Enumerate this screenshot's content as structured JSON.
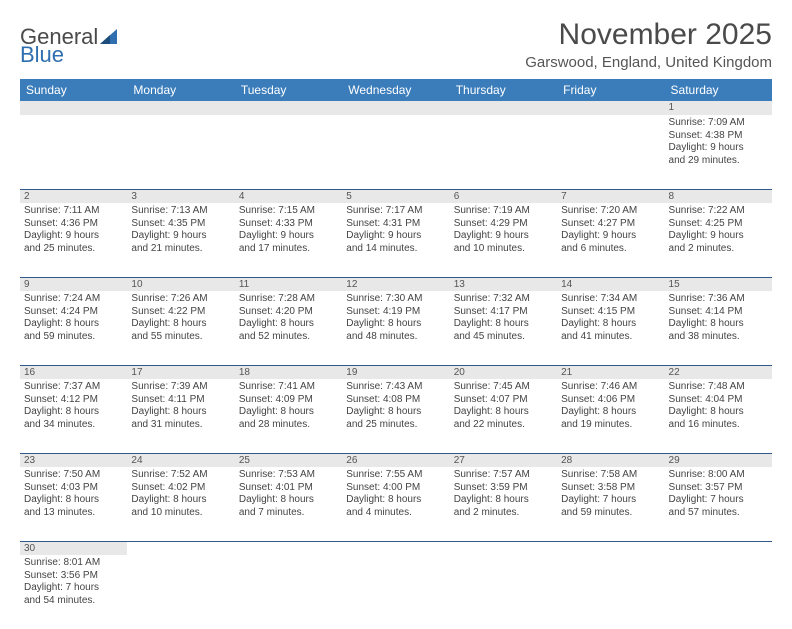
{
  "logo": {
    "text1": "General",
    "text2": "Blue"
  },
  "title": "November 2025",
  "subtitle": "Garswood, England, United Kingdom",
  "dayHeaders": [
    "Sunday",
    "Monday",
    "Tuesday",
    "Wednesday",
    "Thursday",
    "Friday",
    "Saturday"
  ],
  "colors": {
    "header_bg": "#3b7dbb",
    "header_text": "#ffffff",
    "daynum_bg": "#e8e8e8",
    "row_border": "#2f5b8a",
    "text": "#444444",
    "title": "#4a4a4a"
  },
  "weeks": [
    [
      null,
      null,
      null,
      null,
      null,
      null,
      {
        "n": "1",
        "sr": "Sunrise: 7:09 AM",
        "ss": "Sunset: 4:38 PM",
        "d1": "Daylight: 9 hours",
        "d2": "and 29 minutes."
      }
    ],
    [
      {
        "n": "2",
        "sr": "Sunrise: 7:11 AM",
        "ss": "Sunset: 4:36 PM",
        "d1": "Daylight: 9 hours",
        "d2": "and 25 minutes."
      },
      {
        "n": "3",
        "sr": "Sunrise: 7:13 AM",
        "ss": "Sunset: 4:35 PM",
        "d1": "Daylight: 9 hours",
        "d2": "and 21 minutes."
      },
      {
        "n": "4",
        "sr": "Sunrise: 7:15 AM",
        "ss": "Sunset: 4:33 PM",
        "d1": "Daylight: 9 hours",
        "d2": "and 17 minutes."
      },
      {
        "n": "5",
        "sr": "Sunrise: 7:17 AM",
        "ss": "Sunset: 4:31 PM",
        "d1": "Daylight: 9 hours",
        "d2": "and 14 minutes."
      },
      {
        "n": "6",
        "sr": "Sunrise: 7:19 AM",
        "ss": "Sunset: 4:29 PM",
        "d1": "Daylight: 9 hours",
        "d2": "and 10 minutes."
      },
      {
        "n": "7",
        "sr": "Sunrise: 7:20 AM",
        "ss": "Sunset: 4:27 PM",
        "d1": "Daylight: 9 hours",
        "d2": "and 6 minutes."
      },
      {
        "n": "8",
        "sr": "Sunrise: 7:22 AM",
        "ss": "Sunset: 4:25 PM",
        "d1": "Daylight: 9 hours",
        "d2": "and 2 minutes."
      }
    ],
    [
      {
        "n": "9",
        "sr": "Sunrise: 7:24 AM",
        "ss": "Sunset: 4:24 PM",
        "d1": "Daylight: 8 hours",
        "d2": "and 59 minutes."
      },
      {
        "n": "10",
        "sr": "Sunrise: 7:26 AM",
        "ss": "Sunset: 4:22 PM",
        "d1": "Daylight: 8 hours",
        "d2": "and 55 minutes."
      },
      {
        "n": "11",
        "sr": "Sunrise: 7:28 AM",
        "ss": "Sunset: 4:20 PM",
        "d1": "Daylight: 8 hours",
        "d2": "and 52 minutes."
      },
      {
        "n": "12",
        "sr": "Sunrise: 7:30 AM",
        "ss": "Sunset: 4:19 PM",
        "d1": "Daylight: 8 hours",
        "d2": "and 48 minutes."
      },
      {
        "n": "13",
        "sr": "Sunrise: 7:32 AM",
        "ss": "Sunset: 4:17 PM",
        "d1": "Daylight: 8 hours",
        "d2": "and 45 minutes."
      },
      {
        "n": "14",
        "sr": "Sunrise: 7:34 AM",
        "ss": "Sunset: 4:15 PM",
        "d1": "Daylight: 8 hours",
        "d2": "and 41 minutes."
      },
      {
        "n": "15",
        "sr": "Sunrise: 7:36 AM",
        "ss": "Sunset: 4:14 PM",
        "d1": "Daylight: 8 hours",
        "d2": "and 38 minutes."
      }
    ],
    [
      {
        "n": "16",
        "sr": "Sunrise: 7:37 AM",
        "ss": "Sunset: 4:12 PM",
        "d1": "Daylight: 8 hours",
        "d2": "and 34 minutes."
      },
      {
        "n": "17",
        "sr": "Sunrise: 7:39 AM",
        "ss": "Sunset: 4:11 PM",
        "d1": "Daylight: 8 hours",
        "d2": "and 31 minutes."
      },
      {
        "n": "18",
        "sr": "Sunrise: 7:41 AM",
        "ss": "Sunset: 4:09 PM",
        "d1": "Daylight: 8 hours",
        "d2": "and 28 minutes."
      },
      {
        "n": "19",
        "sr": "Sunrise: 7:43 AM",
        "ss": "Sunset: 4:08 PM",
        "d1": "Daylight: 8 hours",
        "d2": "and 25 minutes."
      },
      {
        "n": "20",
        "sr": "Sunrise: 7:45 AM",
        "ss": "Sunset: 4:07 PM",
        "d1": "Daylight: 8 hours",
        "d2": "and 22 minutes."
      },
      {
        "n": "21",
        "sr": "Sunrise: 7:46 AM",
        "ss": "Sunset: 4:06 PM",
        "d1": "Daylight: 8 hours",
        "d2": "and 19 minutes."
      },
      {
        "n": "22",
        "sr": "Sunrise: 7:48 AM",
        "ss": "Sunset: 4:04 PM",
        "d1": "Daylight: 8 hours",
        "d2": "and 16 minutes."
      }
    ],
    [
      {
        "n": "23",
        "sr": "Sunrise: 7:50 AM",
        "ss": "Sunset: 4:03 PM",
        "d1": "Daylight: 8 hours",
        "d2": "and 13 minutes."
      },
      {
        "n": "24",
        "sr": "Sunrise: 7:52 AM",
        "ss": "Sunset: 4:02 PM",
        "d1": "Daylight: 8 hours",
        "d2": "and 10 minutes."
      },
      {
        "n": "25",
        "sr": "Sunrise: 7:53 AM",
        "ss": "Sunset: 4:01 PM",
        "d1": "Daylight: 8 hours",
        "d2": "and 7 minutes."
      },
      {
        "n": "26",
        "sr": "Sunrise: 7:55 AM",
        "ss": "Sunset: 4:00 PM",
        "d1": "Daylight: 8 hours",
        "d2": "and 4 minutes."
      },
      {
        "n": "27",
        "sr": "Sunrise: 7:57 AM",
        "ss": "Sunset: 3:59 PM",
        "d1": "Daylight: 8 hours",
        "d2": "and 2 minutes."
      },
      {
        "n": "28",
        "sr": "Sunrise: 7:58 AM",
        "ss": "Sunset: 3:58 PM",
        "d1": "Daylight: 7 hours",
        "d2": "and 59 minutes."
      },
      {
        "n": "29",
        "sr": "Sunrise: 8:00 AM",
        "ss": "Sunset: 3:57 PM",
        "d1": "Daylight: 7 hours",
        "d2": "and 57 minutes."
      }
    ],
    [
      {
        "n": "30",
        "sr": "Sunrise: 8:01 AM",
        "ss": "Sunset: 3:56 PM",
        "d1": "Daylight: 7 hours",
        "d2": "and 54 minutes."
      },
      null,
      null,
      null,
      null,
      null,
      null
    ]
  ]
}
